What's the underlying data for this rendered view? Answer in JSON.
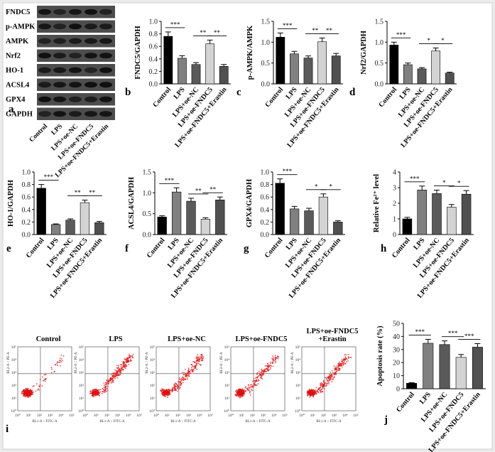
{
  "figure_labels": [
    "a",
    "b",
    "c",
    "d",
    "e",
    "f",
    "g",
    "h",
    "i",
    "j"
  ],
  "blot": {
    "rows": [
      "FNDC5",
      "p-AMPK",
      "AMPK",
      "Nrf2",
      "HO-1",
      "ACSL4",
      "GPX4",
      "GAPDH"
    ],
    "lanes": [
      "Control",
      "LPS",
      "LPS+oe-NC",
      "LPS+oe-FNDC5",
      "LPS+oe-FNDC5+Erastin"
    ]
  },
  "flow": {
    "titles": [
      "Control",
      "LPS",
      "LPS+oe-NC",
      "LPS+oe-FNDC5",
      "LPS+oe-FNDC5\n+Erastin"
    ],
    "xlabel": "BL1-A :: FITC-A",
    "ylabel": "BL2-A :: PE-A",
    "ticks": [
      "10⁰",
      "10¹",
      "10²",
      "10³",
      "10⁴",
      "10⁵"
    ]
  },
  "chart_data": [
    {
      "panel": "b",
      "type": "bar",
      "categories": [
        "Control",
        "LPS",
        "LPS+oe-NC",
        "LPS+oe-FNDC5",
        "LPS+oe-FNDC5+Erastin"
      ],
      "values": [
        0.76,
        0.41,
        0.31,
        0.64,
        0.28
      ],
      "errors": [
        0.07,
        0.04,
        0.03,
        0.06,
        0.03
      ],
      "ylabel": "FNDC5/GAPDH",
      "ylim": [
        0,
        1.0
      ],
      "yticks": [
        "0.0",
        "0.2",
        "0.4",
        "0.6",
        "0.8",
        "1.0"
      ],
      "colors": [
        "#000000",
        "#808080",
        "#5a5a5a",
        "#d3d3d3",
        "#505050"
      ],
      "significance": [
        {
          "from": 0,
          "to": 1,
          "label": "***"
        },
        {
          "from": 2,
          "to": 3,
          "label": "**"
        },
        {
          "from": 3,
          "to": 4,
          "label": "**"
        }
      ]
    },
    {
      "panel": "c",
      "type": "bar",
      "categories": [
        "Control",
        "LPS",
        "LPS+oe-NC",
        "LPS+oe-FNDC5",
        "LPS+oe-FNDC5+Erastin"
      ],
      "values": [
        1.12,
        0.72,
        0.62,
        1.01,
        0.67
      ],
      "errors": [
        0.1,
        0.06,
        0.05,
        0.09,
        0.06
      ],
      "ylabel": "p-AMPK/AMPK",
      "ylim": [
        0,
        1.5
      ],
      "yticks": [
        "0.0",
        "0.5",
        "1.0",
        "1.5"
      ],
      "colors": [
        "#000000",
        "#808080",
        "#5a5a5a",
        "#d3d3d3",
        "#505050"
      ],
      "significance": [
        {
          "from": 0,
          "to": 1,
          "label": "***"
        },
        {
          "from": 2,
          "to": 3,
          "label": "**"
        },
        {
          "from": 3,
          "to": 4,
          "label": "**"
        }
      ]
    },
    {
      "panel": "d",
      "type": "bar",
      "categories": [
        "Control",
        "LPS",
        "LPS+oe-NC",
        "LPS+oe-FNDC5",
        "LPS+oe-FNDC5+Erastin"
      ],
      "values": [
        0.93,
        0.46,
        0.36,
        0.79,
        0.26
      ],
      "errors": [
        0.07,
        0.04,
        0.03,
        0.07,
        0.02
      ],
      "ylabel": "Nrf2/GAPDH",
      "ylim": [
        0,
        1.5
      ],
      "yticks": [
        "0.0",
        "0.5",
        "1.0",
        "1.5"
      ],
      "colors": [
        "#000000",
        "#808080",
        "#5a5a5a",
        "#d3d3d3",
        "#505050"
      ],
      "significance": [
        {
          "from": 0,
          "to": 1,
          "label": "***"
        },
        {
          "from": 2,
          "to": 3,
          "label": "*"
        },
        {
          "from": 3,
          "to": 4,
          "label": "*"
        }
      ]
    },
    {
      "panel": "e",
      "type": "bar",
      "categories": [
        "Control",
        "LPS",
        "LPS+oe-NC",
        "LPS+oe-FNDC5",
        "LPS+oe-FNDC5+Erastin"
      ],
      "values": [
        0.74,
        0.16,
        0.23,
        0.51,
        0.19
      ],
      "errors": [
        0.06,
        0.01,
        0.02,
        0.04,
        0.02
      ],
      "ylabel": "HO-1/GAPDH",
      "ylim": [
        0,
        1.0
      ],
      "yticks": [
        "0.0",
        "0.2",
        "0.4",
        "0.6",
        "0.8",
        "1.0"
      ],
      "colors": [
        "#000000",
        "#808080",
        "#5a5a5a",
        "#d3d3d3",
        "#505050"
      ],
      "significance": [
        {
          "from": 0,
          "to": 1,
          "label": "***"
        },
        {
          "from": 2,
          "to": 3,
          "label": "**"
        },
        {
          "from": 3,
          "to": 4,
          "label": "**"
        }
      ]
    },
    {
      "panel": "f",
      "type": "bar",
      "categories": [
        "Control",
        "LPS",
        "LPS+oe-NC",
        "LPS+oe-FNDC5",
        "LPS+oe-FNDC5+Erastin"
      ],
      "values": [
        0.42,
        1.02,
        0.8,
        0.37,
        0.83
      ],
      "errors": [
        0.03,
        0.1,
        0.07,
        0.03,
        0.07
      ],
      "ylabel": "ACSL4/GAPDH",
      "ylim": [
        0,
        1.5
      ],
      "yticks": [
        "0.0",
        "0.5",
        "1.0",
        "1.5"
      ],
      "colors": [
        "#000000",
        "#808080",
        "#5a5a5a",
        "#d3d3d3",
        "#505050"
      ],
      "significance": [
        {
          "from": 0,
          "to": 1,
          "label": "***"
        },
        {
          "from": 2,
          "to": 3,
          "label": "**"
        },
        {
          "from": 3,
          "to": 4,
          "label": "**"
        }
      ]
    },
    {
      "panel": "g",
      "type": "bar",
      "categories": [
        "Control",
        "LPS",
        "LPS+oe-NC",
        "LPS+oe-FNDC5",
        "LPS+oe-FNDC5+Erastin"
      ],
      "values": [
        0.82,
        0.41,
        0.38,
        0.6,
        0.2
      ],
      "errors": [
        0.07,
        0.04,
        0.04,
        0.05,
        0.02
      ],
      "ylabel": "GPX4/GAPDH",
      "ylim": [
        0,
        1.0
      ],
      "yticks": [
        "0.0",
        "0.2",
        "0.4",
        "0.6",
        "0.8",
        "1.0"
      ],
      "colors": [
        "#000000",
        "#808080",
        "#5a5a5a",
        "#d3d3d3",
        "#505050"
      ],
      "significance": [
        {
          "from": 0,
          "to": 1,
          "label": "***"
        },
        {
          "from": 2,
          "to": 3,
          "label": "*"
        },
        {
          "from": 3,
          "to": 4,
          "label": "*"
        }
      ]
    },
    {
      "panel": "h",
      "type": "bar",
      "categories": [
        "Control",
        "LPS",
        "LPS+oe-NC",
        "LPS+oe-FNDC5",
        "LPS+oe-FNDC5+Erastin"
      ],
      "values": [
        1.0,
        2.85,
        2.62,
        1.75,
        2.58
      ],
      "errors": [
        0.1,
        0.25,
        0.22,
        0.17,
        0.23
      ],
      "ylabel": "Relative Fe²⁺ level",
      "ylim": [
        0,
        4
      ],
      "yticks": [
        "0",
        "1",
        "2",
        "3",
        "4"
      ],
      "colors": [
        "#000000",
        "#808080",
        "#5a5a5a",
        "#d3d3d3",
        "#505050"
      ],
      "significance": [
        {
          "from": 0,
          "to": 1,
          "label": "***"
        },
        {
          "from": 2,
          "to": 3,
          "label": "*"
        },
        {
          "from": 3,
          "to": 4,
          "label": "*"
        }
      ]
    },
    {
      "panel": "j",
      "type": "bar",
      "categories": [
        "Control",
        "LPS",
        "LPS+oe-NC",
        "LPS+oe-FNDC5",
        "LPS+oe-FNDC5+Erastin"
      ],
      "values": [
        4.2,
        34.8,
        33.8,
        24.0,
        31.8
      ],
      "errors": [
        0.5,
        3.0,
        2.8,
        2.2,
        2.7
      ],
      "ylabel": "Apoptosis rate (%)",
      "ylim": [
        0,
        50
      ],
      "yticks": [
        "0",
        "10",
        "20",
        "30",
        "40",
        "50"
      ],
      "colors": [
        "#000000",
        "#808080",
        "#5a5a5a",
        "#d3d3d3",
        "#505050"
      ],
      "significance": [
        {
          "from": 0,
          "to": 1,
          "label": "***"
        },
        {
          "from": 2,
          "to": 3,
          "label": "***"
        },
        {
          "from": 3,
          "to": 4,
          "label": "***"
        }
      ]
    }
  ]
}
